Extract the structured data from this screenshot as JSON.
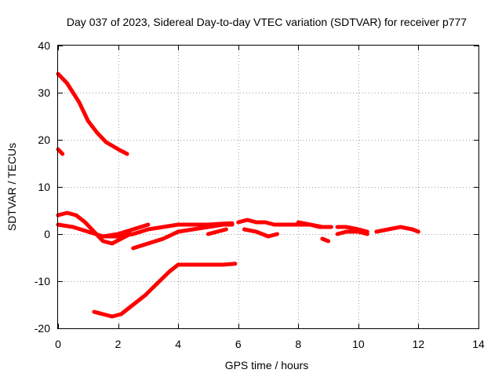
{
  "chart_data": {
    "type": "line",
    "title": "Day 037 of 2023, Sidereal Day-to-day VTEC variation (SDTVAR) for receiver p777",
    "xlabel": "GPS time / hours",
    "ylabel": "SDTVAR / TECUs",
    "xlim": [
      0,
      14
    ],
    "ylim": [
      -20,
      40
    ],
    "xticks": [
      "0",
      "2",
      "4",
      "6",
      "8",
      "10",
      "12",
      "14"
    ],
    "yticks": [
      "-20",
      "-10",
      "0",
      "10",
      "20",
      "30",
      "40"
    ],
    "grid": true,
    "color": "#ff0000",
    "series": [
      {
        "name": "trace-a",
        "x": [
          0.0,
          0.3,
          0.7,
          1.0,
          1.3,
          1.6,
          2.0,
          2.3
        ],
        "y": [
          34,
          32,
          28,
          24,
          21.5,
          19.5,
          18,
          17
        ]
      },
      {
        "name": "trace-b",
        "x": [
          0.0,
          0.15
        ],
        "y": [
          18,
          17
        ]
      },
      {
        "name": "trace-c",
        "x": [
          0.0,
          0.5,
          1.0,
          1.5,
          2.0,
          2.5,
          3.0
        ],
        "y": [
          2,
          1.5,
          0.5,
          -0.5,
          0,
          1,
          2
        ]
      },
      {
        "name": "trace-d",
        "x": [
          0.0,
          0.3,
          0.6,
          0.9,
          1.2,
          1.5,
          1.8,
          2.1,
          2.4
        ],
        "y": [
          4,
          4.5,
          4,
          2.5,
          0.5,
          -1.5,
          -2,
          -1,
          0
        ]
      },
      {
        "name": "trace-e",
        "x": [
          1.5,
          2.0,
          2.5,
          3.0,
          3.5,
          4.0,
          4.5,
          5.0,
          5.5,
          5.8
        ],
        "y": [
          -0.5,
          -0.5,
          0,
          1,
          1.5,
          2,
          2,
          2,
          2.2,
          2.3
        ]
      },
      {
        "name": "trace-f",
        "x": [
          2.5,
          3.0,
          3.5,
          4.0,
          4.5,
          5.0,
          5.5,
          5.8
        ],
        "y": [
          -3,
          -2,
          -1,
          0.5,
          1,
          1.5,
          2,
          2
        ]
      },
      {
        "name": "trace-g",
        "x": [
          5.0,
          5.3,
          5.6
        ],
        "y": [
          0,
          0.5,
          1
        ]
      },
      {
        "name": "trace-h",
        "x": [
          6.0,
          6.3,
          6.6,
          6.9,
          7.2,
          7.5,
          7.8,
          8.1,
          8.4,
          8.7,
          9.0
        ],
        "y": [
          2.5,
          3,
          2.5,
          2.5,
          2,
          2,
          2,
          2,
          2,
          1.5,
          1.5
        ]
      },
      {
        "name": "trace-i",
        "x": [
          6.2,
          6.6,
          7.0,
          7.3
        ],
        "y": [
          1,
          0.5,
          -0.5,
          0
        ]
      },
      {
        "name": "trace-j",
        "x": [
          8.0,
          8.4,
          8.8,
          9.1
        ],
        "y": [
          2.5,
          2,
          1.5,
          1.5
        ]
      },
      {
        "name": "trace-k",
        "x": [
          8.8,
          9.0
        ],
        "y": [
          -1,
          -1.5
        ]
      },
      {
        "name": "trace-l",
        "x": [
          9.3,
          9.6,
          10.0,
          10.3
        ],
        "y": [
          1.5,
          1.5,
          1,
          0.5
        ]
      },
      {
        "name": "trace-m",
        "x": [
          9.3,
          9.6,
          10.0,
          10.3
        ],
        "y": [
          0,
          0.5,
          0.5,
          0
        ]
      },
      {
        "name": "trace-n",
        "x": [
          10.6,
          11.0,
          11.4,
          11.8,
          12.0
        ],
        "y": [
          0.5,
          1,
          1.5,
          1,
          0.5
        ]
      },
      {
        "name": "trace-o",
        "x": [
          1.2,
          1.5,
          1.8,
          2.1,
          2.5,
          2.9,
          3.3,
          3.7,
          4.0,
          4.5,
          5.0,
          5.5,
          5.9
        ],
        "y": [
          -16.5,
          -17,
          -17.5,
          -17,
          -15,
          -13,
          -10.5,
          -8,
          -6.5,
          -6.5,
          -6.5,
          -6.5,
          -6.3
        ]
      }
    ]
  }
}
